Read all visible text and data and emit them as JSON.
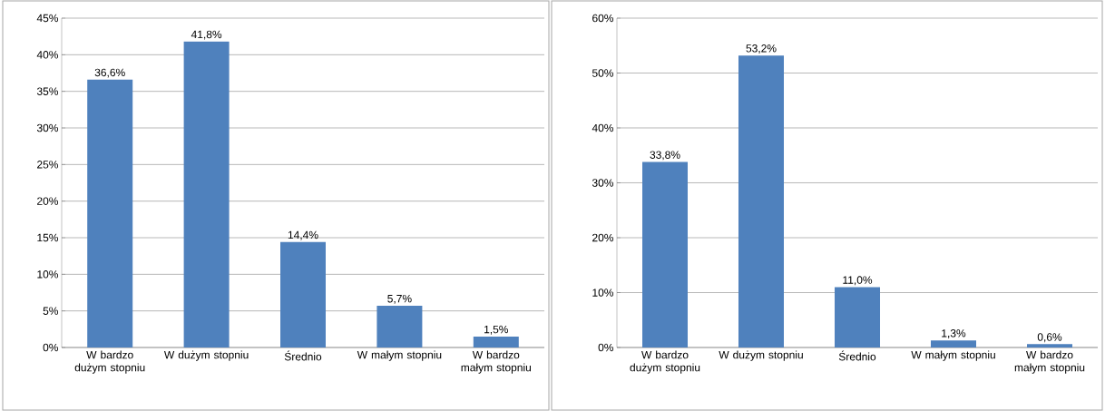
{
  "chart_data": [
    {
      "type": "bar",
      "categories": [
        "W bardzo dużym stopniu",
        "W dużym stopniu",
        "Średnio",
        "W małym stopniu",
        "W bardzo małym stopniu"
      ],
      "values": [
        36.6,
        41.8,
        14.4,
        5.7,
        1.5
      ],
      "color": "#4f81bd",
      "value_labels": [
        "36,6%",
        "41,8%",
        "14,4%",
        "5,7%",
        "1,5%"
      ],
      "ylim": [
        0,
        45
      ],
      "yticks": [
        {
          "value": 0,
          "label": "0%"
        },
        {
          "value": 5,
          "label": "5%"
        },
        {
          "value": 10,
          "label": "10%"
        },
        {
          "value": 15,
          "label": "15%"
        },
        {
          "value": 20,
          "label": "20%"
        },
        {
          "value": 25,
          "label": "25%"
        },
        {
          "value": 30,
          "label": "30%"
        },
        {
          "value": 35,
          "label": "35%"
        },
        {
          "value": 40,
          "label": "40%"
        },
        {
          "value": 45,
          "label": "45%"
        }
      ],
      "grid": "y"
    },
    {
      "type": "bar",
      "categories": [
        "W bardzo dużym stopniu",
        "W dużym stopniu",
        "Średnio",
        "W małym stopniu",
        "W bardzo małym stopniu"
      ],
      "values": [
        33.8,
        53.2,
        11.0,
        1.3,
        0.6
      ],
      "color": "#4f81bd",
      "value_labels": [
        "33,8%",
        "53,2%",
        "11,0%",
        "1,3%",
        "0,6%"
      ],
      "ylim": [
        0,
        60
      ],
      "yticks": [
        {
          "value": 0,
          "label": "0%"
        },
        {
          "value": 10,
          "label": "10%"
        },
        {
          "value": 20,
          "label": "20%"
        },
        {
          "value": 30,
          "label": "30%"
        },
        {
          "value": 40,
          "label": "40%"
        },
        {
          "value": 50,
          "label": "50%"
        },
        {
          "value": 60,
          "label": "60%"
        }
      ],
      "grid": "y"
    }
  ]
}
